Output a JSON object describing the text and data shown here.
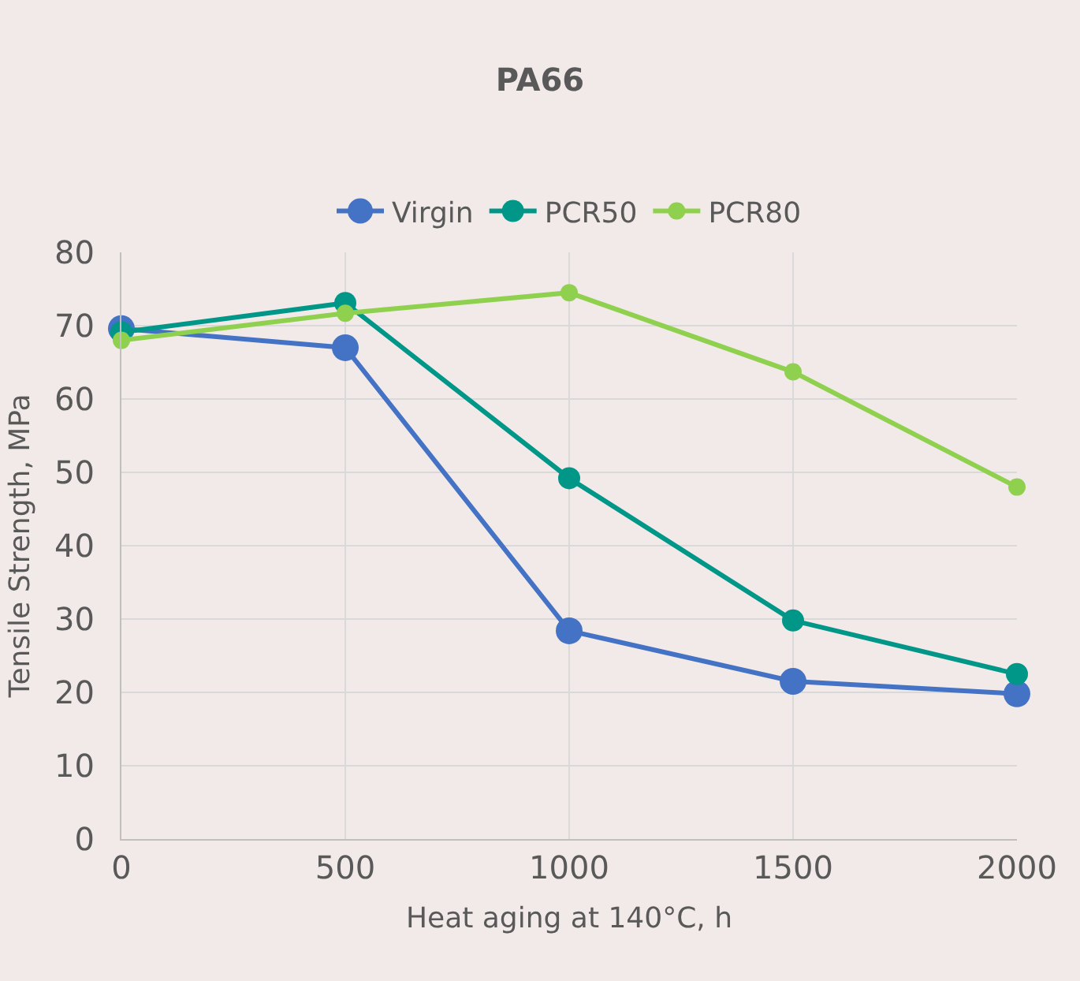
{
  "chart_data": {
    "type": "line",
    "title": "PA66",
    "xlabel": "Heat aging at 140°C, h",
    "ylabel": "Tensile Strength, MPa",
    "x": [
      0,
      500,
      1000,
      1500,
      2000
    ],
    "series": [
      {
        "name": "Virgin",
        "color": "#4472c4",
        "values": [
          69.6,
          67.0,
          28.4,
          21.5,
          19.8
        ]
      },
      {
        "name": "PCR50",
        "color": "#009688",
        "values": [
          69.1,
          73.1,
          49.2,
          29.8,
          22.5
        ]
      },
      {
        "name": "PCR80",
        "color": "#8fd14f",
        "values": [
          68.0,
          71.7,
          74.5,
          63.7,
          48.0
        ]
      }
    ],
    "xlim": [
      0,
      2000
    ],
    "xticks": [
      0,
      500,
      1000,
      1500,
      2000
    ],
    "ylim": [
      0,
      80
    ],
    "yticks": [
      0,
      10,
      20,
      30,
      40,
      50,
      60,
      70,
      80
    ],
    "grid": true,
    "legend": "top",
    "marker": "circle",
    "line_style": "solid"
  }
}
